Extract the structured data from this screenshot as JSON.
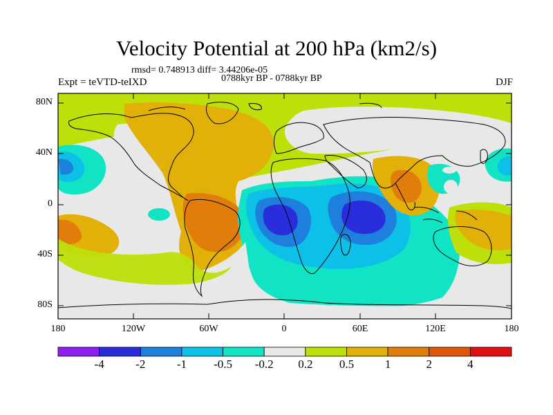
{
  "header": {
    "title": "Velocity Potential at 200 hPa (km2/s)",
    "stats": "rmsd= 0.748913 diff= 3.44206e-05",
    "period": "0788kyr BP - 0788kyr BP",
    "experiment": "Expt = teVTD-teIXD",
    "season": "DJF"
  },
  "axes": {
    "lat_labels": [
      "80N",
      "40N",
      "0",
      "40S",
      "80S"
    ],
    "lon_labels": [
      "180",
      "120W",
      "60W",
      "0",
      "60E",
      "120E",
      "180"
    ]
  },
  "colorbar": {
    "labels": [
      "-4",
      "-2",
      "-1",
      "-0.5",
      "-0.2",
      "0.2",
      "0.5",
      "1",
      "2",
      "4"
    ],
    "colors": [
      "#8f1fef",
      "#2a2ddc",
      "#1e7fdc",
      "#0cc0e8",
      "#10e4c4",
      "#e8e8e8",
      "#bedf0a",
      "#e1b10a",
      "#e17d0a",
      "#e1560a",
      "#e01010"
    ]
  },
  "colors": {
    "background_field": "#e8e8e8",
    "coast": "#000000"
  }
}
